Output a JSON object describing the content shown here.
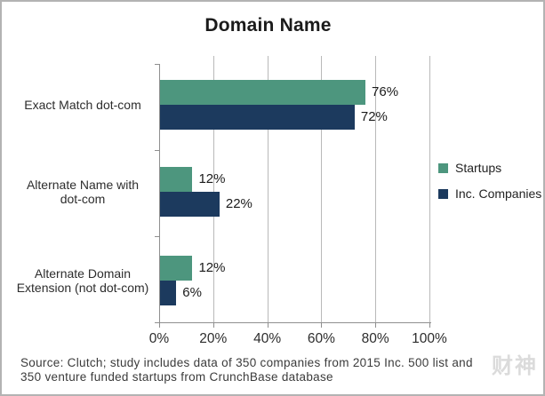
{
  "chart_data": {
    "type": "bar",
    "orientation": "horizontal",
    "title": "Domain Name",
    "categories": [
      "Exact Match dot-com",
      "Alternate Name with dot-com",
      "Alternate Domain Extension (not dot-com)"
    ],
    "category_display_lines": [
      [
        "Exact Match dot-com"
      ],
      [
        "Alternate Name with",
        "dot-com"
      ],
      [
        "Alternate Domain",
        "Extension (not dot-com)"
      ]
    ],
    "series": [
      {
        "name": "Startups",
        "color": "#4D967E",
        "values": [
          76,
          12,
          12
        ]
      },
      {
        "name": "Inc. Companies",
        "color": "#1C3A5E",
        "values": [
          72,
          22,
          6
        ]
      }
    ],
    "value_label_suffix": "%",
    "xlim": [
      0,
      100
    ],
    "xtick_values": [
      0,
      20,
      40,
      60,
      80,
      100
    ],
    "xtick_labels": [
      "0%",
      "20%",
      "40%",
      "60%",
      "80%",
      "100%"
    ],
    "grid": true,
    "legend_position": "right-outside"
  },
  "source": {
    "line1": "Source: Clutch; study includes data of 350 companies from 2015 Inc. 500 list and",
    "line2": "350 venture funded startups from CrunchBase database"
  },
  "watermark": {
    "text": "财神"
  }
}
